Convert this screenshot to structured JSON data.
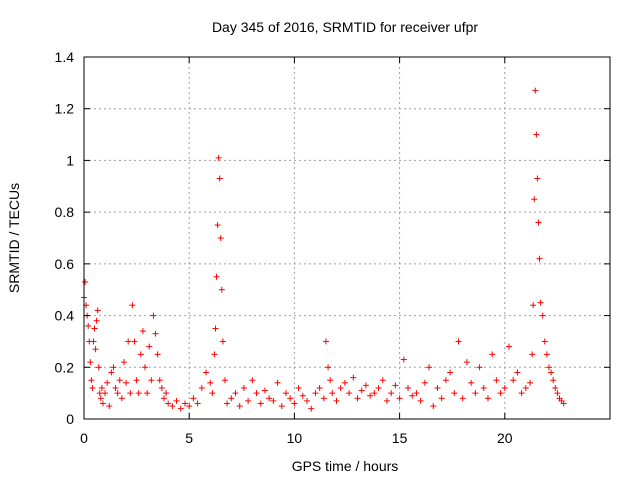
{
  "chart_data": {
    "type": "scatter",
    "title": "Day 345 of 2016, SRMTID for receiver ufpr",
    "xlabel": "GPS time / hours",
    "ylabel": "SRMTID / TECUs",
    "xlim": [
      0,
      25
    ],
    "ylim": [
      0,
      1.4
    ],
    "xticks": [
      0,
      5,
      10,
      15,
      20
    ],
    "xtick_labels": [
      "0",
      "5",
      "10",
      "15",
      "20"
    ],
    "yticks": [
      0,
      0.2,
      0.4,
      0.6,
      0.8,
      1.0,
      1.2,
      1.4
    ],
    "ytick_labels": [
      "0",
      "0.2",
      "0.4",
      "0.6",
      "0.8",
      "1",
      "1.2",
      "1.4"
    ],
    "grid": true,
    "marker": "+",
    "color": "#ff0000",
    "series": [
      {
        "name": "SRMTID",
        "x": [
          0.0,
          0.05,
          0.1,
          0.15,
          0.2,
          0.25,
          0.3,
          0.35,
          0.4,
          0.45,
          0.5,
          0.55,
          0.6,
          0.65,
          0.7,
          0.75,
          0.8,
          0.85,
          0.9,
          1.0,
          1.1,
          1.2,
          1.3,
          1.4,
          1.5,
          1.6,
          1.7,
          1.8,
          1.9,
          2.0,
          2.1,
          2.2,
          2.3,
          2.4,
          2.5,
          2.6,
          2.7,
          2.8,
          2.9,
          3.0,
          3.1,
          3.2,
          3.3,
          3.4,
          3.5,
          3.6,
          3.7,
          3.8,
          3.9,
          4.0,
          4.2,
          4.4,
          4.6,
          4.8,
          5.0,
          5.2,
          5.4,
          5.6,
          5.8,
          6.0,
          6.1,
          6.2,
          6.25,
          6.3,
          6.35,
          6.4,
          6.45,
          6.5,
          6.55,
          6.6,
          6.7,
          6.8,
          7.0,
          7.2,
          7.4,
          7.6,
          7.8,
          8.0,
          8.2,
          8.4,
          8.6,
          8.8,
          9.0,
          9.2,
          9.4,
          9.6,
          9.8,
          10.0,
          10.2,
          10.4,
          10.6,
          10.8,
          11.0,
          11.2,
          11.4,
          11.5,
          11.6,
          11.7,
          11.8,
          12.0,
          12.2,
          12.4,
          12.6,
          12.8,
          13.0,
          13.2,
          13.4,
          13.6,
          13.8,
          14.0,
          14.2,
          14.4,
          14.6,
          14.8,
          15.0,
          15.2,
          15.4,
          15.6,
          15.8,
          16.0,
          16.2,
          16.4,
          16.6,
          16.8,
          17.0,
          17.2,
          17.4,
          17.6,
          17.8,
          18.0,
          18.2,
          18.4,
          18.6,
          18.8,
          19.0,
          19.2,
          19.4,
          19.6,
          19.8,
          20.0,
          20.2,
          20.4,
          20.6,
          20.8,
          21.0,
          21.2,
          21.3,
          21.35,
          21.4,
          21.45,
          21.5,
          21.55,
          21.6,
          21.65,
          21.7,
          21.8,
          21.9,
          22.0,
          22.1,
          22.2,
          22.3,
          22.4,
          22.5,
          22.6,
          22.7,
          22.8
        ],
        "y": [
          0.47,
          0.53,
          0.44,
          0.4,
          0.36,
          0.3,
          0.22,
          0.15,
          0.12,
          0.3,
          0.35,
          0.27,
          0.38,
          0.42,
          0.2,
          0.1,
          0.08,
          0.12,
          0.06,
          0.1,
          0.14,
          0.05,
          0.18,
          0.2,
          0.12,
          0.1,
          0.15,
          0.08,
          0.22,
          0.14,
          0.3,
          0.1,
          0.44,
          0.3,
          0.15,
          0.1,
          0.25,
          0.34,
          0.2,
          0.1,
          0.28,
          0.15,
          0.4,
          0.33,
          0.25,
          0.15,
          0.12,
          0.08,
          0.1,
          0.06,
          0.05,
          0.07,
          0.04,
          0.06,
          0.05,
          0.08,
          0.06,
          0.12,
          0.18,
          0.14,
          0.1,
          0.25,
          0.35,
          0.55,
          0.75,
          1.01,
          0.93,
          0.7,
          0.5,
          0.3,
          0.15,
          0.06,
          0.08,
          0.1,
          0.05,
          0.12,
          0.07,
          0.15,
          0.1,
          0.06,
          0.11,
          0.08,
          0.07,
          0.14,
          0.05,
          0.1,
          0.08,
          0.06,
          0.12,
          0.09,
          0.07,
          0.04,
          0.1,
          0.12,
          0.08,
          0.3,
          0.2,
          0.15,
          0.1,
          0.07,
          0.12,
          0.14,
          0.1,
          0.16,
          0.08,
          0.11,
          0.13,
          0.09,
          0.1,
          0.12,
          0.15,
          0.07,
          0.1,
          0.13,
          0.08,
          0.23,
          0.12,
          0.09,
          0.1,
          0.07,
          0.14,
          0.2,
          0.05,
          0.12,
          0.08,
          0.15,
          0.18,
          0.1,
          0.3,
          0.08,
          0.22,
          0.14,
          0.1,
          0.2,
          0.12,
          0.08,
          0.25,
          0.15,
          0.1,
          0.12,
          0.28,
          0.15,
          0.18,
          0.1,
          0.12,
          0.14,
          0.25,
          0.44,
          0.85,
          1.27,
          1.1,
          0.93,
          0.76,
          0.62,
          0.45,
          0.4,
          0.3,
          0.25,
          0.2,
          0.18,
          0.15,
          0.12,
          0.1,
          0.08,
          0.07,
          0.06
        ]
      }
    ]
  }
}
